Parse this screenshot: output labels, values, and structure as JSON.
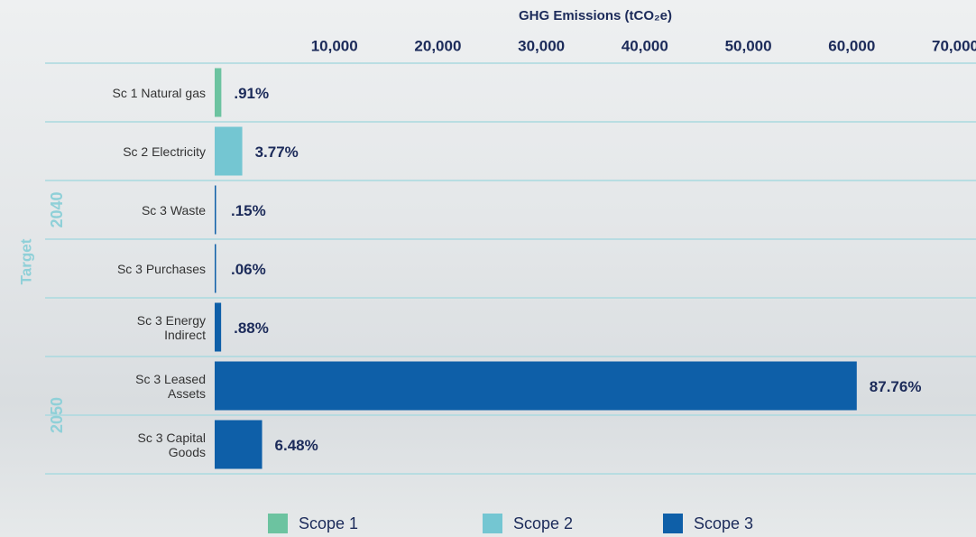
{
  "chart_data": {
    "type": "bar",
    "orientation": "horizontal",
    "x_label": "GHG Emissions (tCO₂e)",
    "side_label": "Target",
    "groups": [
      {
        "label": "2040",
        "size": 5
      },
      {
        "label": "2050",
        "size": 2
      }
    ],
    "categories": [
      "Sc 1 Natural gas",
      "Sc 2 Electricity",
      "Sc 3 Waste",
      "Sc 3  Purchases",
      "Sc 3  Energy\nIndirect",
      "Sc 3 Leased\nAssets",
      "Sc 3 Capital\nGoods"
    ],
    "share_labels": [
      ".91%",
      "3.77%",
      ".15%",
      ".06%",
      ".88%",
      "87.76%",
      "6.48%"
    ],
    "series": [
      {
        "name": "Scope 1",
        "color": "#6cc3a0",
        "values": [
          643,
          null,
          null,
          null,
          null,
          null,
          null
        ]
      },
      {
        "name": "Scope 2",
        "color": "#74c6d2",
        "values": [
          null,
          2665,
          null,
          null,
          null,
          null,
          null
        ]
      },
      {
        "name": "Scope 3",
        "color": "#0e5fa8",
        "values": [
          null,
          null,
          106,
          42,
          622,
          62050,
          4580
        ]
      }
    ],
    "xlim": [
      0,
      70000
    ],
    "xticks": [
      {
        "value": 10000,
        "label": "10,000"
      },
      {
        "value": 20000,
        "label": "20,000"
      },
      {
        "value": 30000,
        "label": "30,000"
      },
      {
        "value": 40000,
        "label": "40,000"
      },
      {
        "value": 50000,
        "label": "50,000"
      },
      {
        "value": 60000,
        "label": "60,000"
      },
      {
        "value": 70000,
        "label": "70,000"
      }
    ]
  }
}
